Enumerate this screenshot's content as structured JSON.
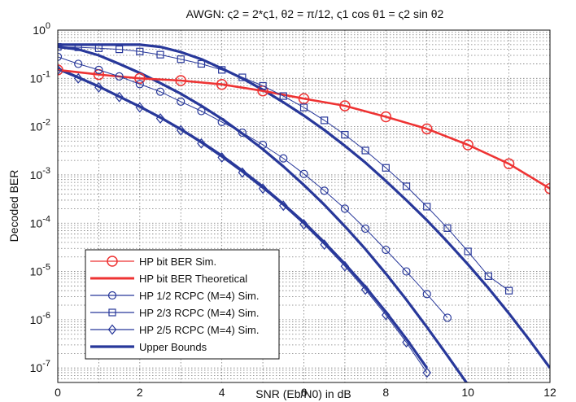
{
  "chart_data": {
    "type": "line",
    "title": "AWGN: ς2 = 2*ς1, θ2 = π/12, ς1 cos θ1 = ς2 sin θ2",
    "xlabel": "SNR (Eb/N0) in dB",
    "ylabel": "Decoded BER",
    "xlim": [
      0,
      12
    ],
    "ylim_log10": [
      -7.3,
      0
    ],
    "y_scale": "log",
    "grid": true,
    "legend_position": "bottom-left",
    "x_ticks": [
      "0",
      "2",
      "4",
      "6",
      "8",
      "10",
      "12"
    ],
    "y_ticks": [
      {
        "base": "10",
        "exp": "0"
      },
      {
        "base": "10",
        "exp": "-1"
      },
      {
        "base": "10",
        "exp": "-2"
      },
      {
        "base": "10",
        "exp": "-3"
      },
      {
        "base": "10",
        "exp": "-4"
      },
      {
        "base": "10",
        "exp": "-5"
      },
      {
        "base": "10",
        "exp": "-6"
      },
      {
        "base": "10",
        "exp": "-7"
      }
    ],
    "colors": {
      "red": "#ee3333",
      "blue": "#28389a"
    },
    "series": [
      {
        "name": "HP bit BER Sim.",
        "style": "red-circle",
        "x": [
          0,
          1,
          2,
          3,
          4,
          5,
          6,
          7,
          8,
          9,
          10,
          11,
          12
        ],
        "y": [
          0.15,
          0.12,
          0.1,
          0.09,
          0.075,
          0.055,
          0.038,
          0.027,
          0.016,
          0.009,
          0.0042,
          0.0017,
          0.00052
        ]
      },
      {
        "name": "HP bit BER Theoretical",
        "style": "red-line",
        "x": [
          0,
          1,
          2,
          3,
          4,
          5,
          6,
          7,
          8,
          9,
          10,
          11,
          12
        ],
        "y": [
          0.15,
          0.12,
          0.1,
          0.09,
          0.075,
          0.055,
          0.038,
          0.027,
          0.016,
          0.009,
          0.0042,
          0.0017,
          0.00052
        ]
      },
      {
        "name": "HP 1/2 RCPC (M=4) Sim.",
        "style": "blue-circle",
        "x": [
          0,
          0.5,
          1,
          1.5,
          2,
          2.5,
          3,
          3.5,
          4,
          4.5,
          5,
          5.5,
          6,
          6.5,
          7,
          7.5,
          8,
          8.5,
          9,
          9.5
        ],
        "y": [
          0.28,
          0.2,
          0.15,
          0.11,
          0.076,
          0.053,
          0.033,
          0.021,
          0.0125,
          0.0075,
          0.0042,
          0.0022,
          0.00105,
          0.00047,
          0.0002,
          7.7e-05,
          2.8e-05,
          1e-05,
          3.4e-06,
          1.1e-06
        ]
      },
      {
        "name": "HP 2/3 RCPC (M=4) Sim.",
        "style": "blue-square",
        "x": [
          0,
          0.5,
          1,
          1.5,
          2,
          2.5,
          3,
          3.5,
          4,
          4.5,
          5,
          5.5,
          6,
          6.5,
          7,
          7.5,
          8,
          8.5,
          9,
          9.5,
          10,
          10.5,
          11
        ],
        "y": [
          0.45,
          0.44,
          0.42,
          0.4,
          0.36,
          0.31,
          0.25,
          0.2,
          0.15,
          0.105,
          0.07,
          0.043,
          0.025,
          0.0135,
          0.0068,
          0.0032,
          0.0014,
          0.00058,
          0.00022,
          7.9e-05,
          2.6e-05,
          8e-06,
          4e-06
        ]
      },
      {
        "name": "HP 2/5 RCPC (M=4) Sim.",
        "style": "blue-diamond",
        "x": [
          0,
          0.5,
          1,
          1.5,
          2,
          2.5,
          3,
          3.5,
          4,
          4.5,
          5,
          5.5,
          6,
          6.5,
          7,
          7.5,
          8,
          8.5,
          9
        ],
        "y": [
          0.15,
          0.1,
          0.065,
          0.041,
          0.025,
          0.0148,
          0.0084,
          0.0045,
          0.0023,
          0.00112,
          0.00052,
          0.00023,
          9.5e-05,
          3.6e-05,
          1.28e-05,
          4.2e-06,
          1.25e-06,
          3.4e-07,
          8e-08
        ]
      },
      {
        "name": "Upper Bounds",
        "style": "blue-thick",
        "curves": [
          {
            "x": [
              0,
              0.5,
              1,
              1.5,
              2,
              2.5,
              3,
              3.5,
              4,
              4.5,
              5,
              5.5,
              6,
              6.5,
              7,
              7.5,
              8,
              8.5,
              9,
              9.5,
              10,
              10.5,
              11,
              11.5,
              12
            ],
            "y": [
              0.5,
              0.5,
              0.5,
              0.5,
              0.5,
              0.45,
              0.35,
              0.25,
              0.16,
              0.1,
              0.058,
              0.032,
              0.017,
              0.0085,
              0.004,
              0.0018,
              0.00075,
              0.0003,
              0.000115,
              4.1e-05,
              1.4e-05,
              4.5e-06,
              1.35e-06,
              3.8e-07,
              1e-07
            ]
          },
          {
            "x": [
              0,
              0.5,
              1,
              1.5,
              2,
              2.5,
              3,
              3.5,
              4,
              4.5,
              5,
              5.5,
              6,
              6.5,
              7,
              7.5,
              8,
              8.5,
              9,
              9.5,
              10
            ],
            "y": [
              0.45,
              0.4,
              0.3,
              0.2,
              0.13,
              0.08,
              0.048,
              0.027,
              0.0145,
              0.0072,
              0.0034,
              0.0015,
              0.00062,
              0.00024,
              8.6e-05,
              2.9e-05,
              9e-06,
              2.6e-06,
              7e-07,
              1.8e-07,
              4.5e-08
            ]
          },
          {
            "x": [
              0,
              0.5,
              1,
              1.5,
              2,
              2.5,
              3,
              3.5,
              4,
              4.5,
              5,
              5.5,
              6,
              6.5,
              7,
              7.5,
              8,
              8.5,
              9
            ],
            "y": [
              0.16,
              0.105,
              0.068,
              0.042,
              0.026,
              0.0155,
              0.0088,
              0.0048,
              0.0025,
              0.00122,
              0.00057,
              0.00025,
              0.000104,
              4e-05,
              1.44e-05,
              4.8e-06,
              1.45e-06,
              4e-07,
              1e-07
            ]
          }
        ]
      }
    ]
  }
}
